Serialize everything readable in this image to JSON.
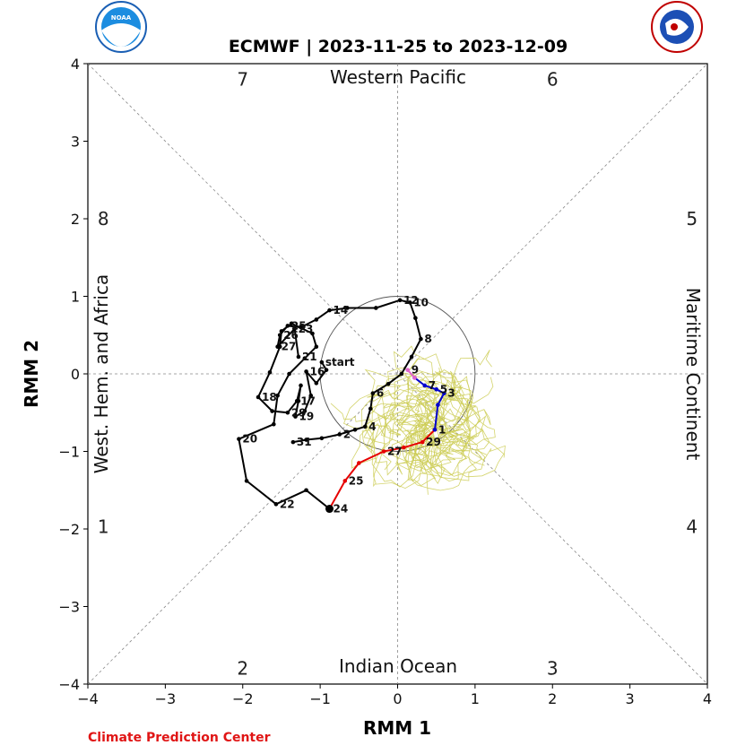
{
  "title": "ECMWF | 2023-11-25 to 2023-12-09",
  "footer": "Climate Prediction Center",
  "logos": {
    "left_text": "NOAA",
    "right_text": "NATIONAL WEATHER SERVICE"
  },
  "colors": {
    "observed": "#000000",
    "forecast_day1": "#e60000",
    "forecast_week2": "#0000cc",
    "forecast_tail": "#e066cc",
    "ensemble": "#cccc55",
    "footer": "#e01515"
  },
  "region_labels": {
    "top": "Western Pacific",
    "bottom": "Indian Ocean",
    "left": "West. Hem. and Africa",
    "right": "Maritime Continent"
  },
  "phase_numbers": [
    {
      "label": "1",
      "x": -3.8,
      "y": -1.97
    },
    {
      "label": "2",
      "x": -2.0,
      "y": -3.8
    },
    {
      "label": "3",
      "x": 2.0,
      "y": -3.8
    },
    {
      "label": "4",
      "x": 3.8,
      "y": -1.97
    },
    {
      "label": "5",
      "x": 3.8,
      "y": 2.0
    },
    {
      "label": "6",
      "x": 2.0,
      "y": 3.8
    },
    {
      "label": "7",
      "x": -2.0,
      "y": 3.8
    },
    {
      "label": "8",
      "x": -3.8,
      "y": 2.0
    }
  ],
  "chart_data": {
    "type": "scatter",
    "title": "ECMWF | 2023-11-25 to 2023-12-09",
    "xlabel": "RMM 1",
    "ylabel": "RMM 2",
    "xlim": [
      -4,
      4
    ],
    "ylim": [
      -4,
      4
    ],
    "xticks": [
      "−4",
      "−3",
      "−2",
      "−1",
      "0",
      "1",
      "2",
      "3",
      "4"
    ],
    "yticks": [
      "−4",
      "−3",
      "−2",
      "−1",
      "0",
      "1",
      "2",
      "3",
      "4"
    ],
    "unit_circle_radius": 1,
    "series": [
      {
        "kind": "observed",
        "points": [
          {
            "x": -0.98,
            "y": 0.15,
            "label": "start"
          },
          {
            "x": -0.92,
            "y": 0.05
          },
          {
            "x": -1.05,
            "y": -0.12
          },
          {
            "x": -1.18,
            "y": 0.03,
            "label": "16"
          },
          {
            "x": -1.12,
            "y": -0.28
          },
          {
            "x": -1.2,
            "y": -0.48
          },
          {
            "x": -1.32,
            "y": -0.55,
            "label": "19"
          },
          {
            "x": -1.28,
            "y": -0.35
          },
          {
            "x": -1.25,
            "y": -0.15
          },
          {
            "x": -1.3,
            "y": -0.35,
            "label": "17"
          },
          {
            "x": -1.42,
            "y": -0.5,
            "label": "29"
          },
          {
            "x": -1.62,
            "y": -0.48
          },
          {
            "x": -1.8,
            "y": -0.3,
            "label": "18"
          },
          {
            "x": -1.65,
            "y": 0.02
          },
          {
            "x": -1.52,
            "y": 0.35
          },
          {
            "x": -1.5,
            "y": 0.55
          },
          {
            "x": -1.37,
            "y": 0.65
          },
          {
            "x": -1.1,
            "y": 0.52
          },
          {
            "x": -1.05,
            "y": 0.35
          },
          {
            "x": -1.2,
            "y": 0.2
          },
          {
            "x": -1.4,
            "y": 0.0
          },
          {
            "x": -1.55,
            "y": -0.28
          },
          {
            "x": -1.6,
            "y": -0.65
          },
          {
            "x": -2.05,
            "y": -0.84,
            "label": "20"
          },
          {
            "x": -1.95,
            "y": -1.38
          },
          {
            "x": -1.57,
            "y": -1.68,
            "label": "22"
          },
          {
            "x": -1.18,
            "y": -1.5
          },
          {
            "x": -0.88,
            "y": -1.74,
            "label": "24"
          }
        ]
      },
      {
        "kind": "observed_loop",
        "points": [
          {
            "x": -1.35,
            "y": -0.88,
            "label": "31"
          },
          {
            "x": -1.18,
            "y": -0.85
          },
          {
            "x": -0.98,
            "y": -0.83
          },
          {
            "x": -0.75,
            "y": -0.78,
            "label": "2"
          },
          {
            "x": -0.55,
            "y": -0.72
          },
          {
            "x": -0.42,
            "y": -0.68,
            "label": "4"
          },
          {
            "x": -0.35,
            "y": -0.45
          },
          {
            "x": -0.32,
            "y": -0.25,
            "label": "6"
          },
          {
            "x": -0.12,
            "y": -0.13
          },
          {
            "x": 0.05,
            "y": 0.0
          },
          {
            "x": 0.18,
            "y": 0.22
          },
          {
            "x": 0.3,
            "y": 0.45,
            "label": "8"
          },
          {
            "x": 0.23,
            "y": 0.72
          },
          {
            "x": 0.16,
            "y": 0.92,
            "label": "10"
          },
          {
            "x": 0.03,
            "y": 0.95,
            "label": "12"
          },
          {
            "x": -0.28,
            "y": 0.85
          },
          {
            "x": -0.65,
            "y": 0.85
          },
          {
            "x": -0.88,
            "y": 0.82,
            "label": "14"
          },
          {
            "x": -1.05,
            "y": 0.7
          },
          {
            "x": -1.25,
            "y": 0.6
          },
          {
            "x": -1.42,
            "y": 0.62,
            "label": "25"
          },
          {
            "x": -1.52,
            "y": 0.5,
            "label": "26"
          },
          {
            "x": -1.55,
            "y": 0.35,
            "label": "27"
          },
          {
            "x": -1.33,
            "y": 0.58,
            "label": "23"
          },
          {
            "x": -1.28,
            "y": 0.22,
            "label": "21"
          }
        ]
      },
      {
        "kind": "forecast_red",
        "points": [
          {
            "x": -0.88,
            "y": -1.74
          },
          {
            "x": -0.68,
            "y": -1.38,
            "label": "25"
          },
          {
            "x": -0.5,
            "y": -1.15
          },
          {
            "x": -0.18,
            "y": -1.0,
            "label": "27"
          },
          {
            "x": 0.08,
            "y": -0.95
          },
          {
            "x": 0.32,
            "y": -0.88,
            "label": "29"
          },
          {
            "x": 0.48,
            "y": -0.72
          }
        ]
      },
      {
        "kind": "forecast_blue",
        "points": [
          {
            "x": 0.48,
            "y": -0.72,
            "label": "1"
          },
          {
            "x": 0.52,
            "y": -0.4
          },
          {
            "x": 0.6,
            "y": -0.25,
            "label": "3"
          },
          {
            "x": 0.5,
            "y": -0.2,
            "label": "5"
          },
          {
            "x": 0.35,
            "y": -0.15,
            "label": "7"
          },
          {
            "x": 0.22,
            "y": -0.05
          }
        ]
      },
      {
        "kind": "forecast_pink",
        "points": [
          {
            "x": 0.22,
            "y": -0.05
          },
          {
            "x": 0.13,
            "y": 0.05,
            "label": "9"
          }
        ]
      }
    ]
  }
}
